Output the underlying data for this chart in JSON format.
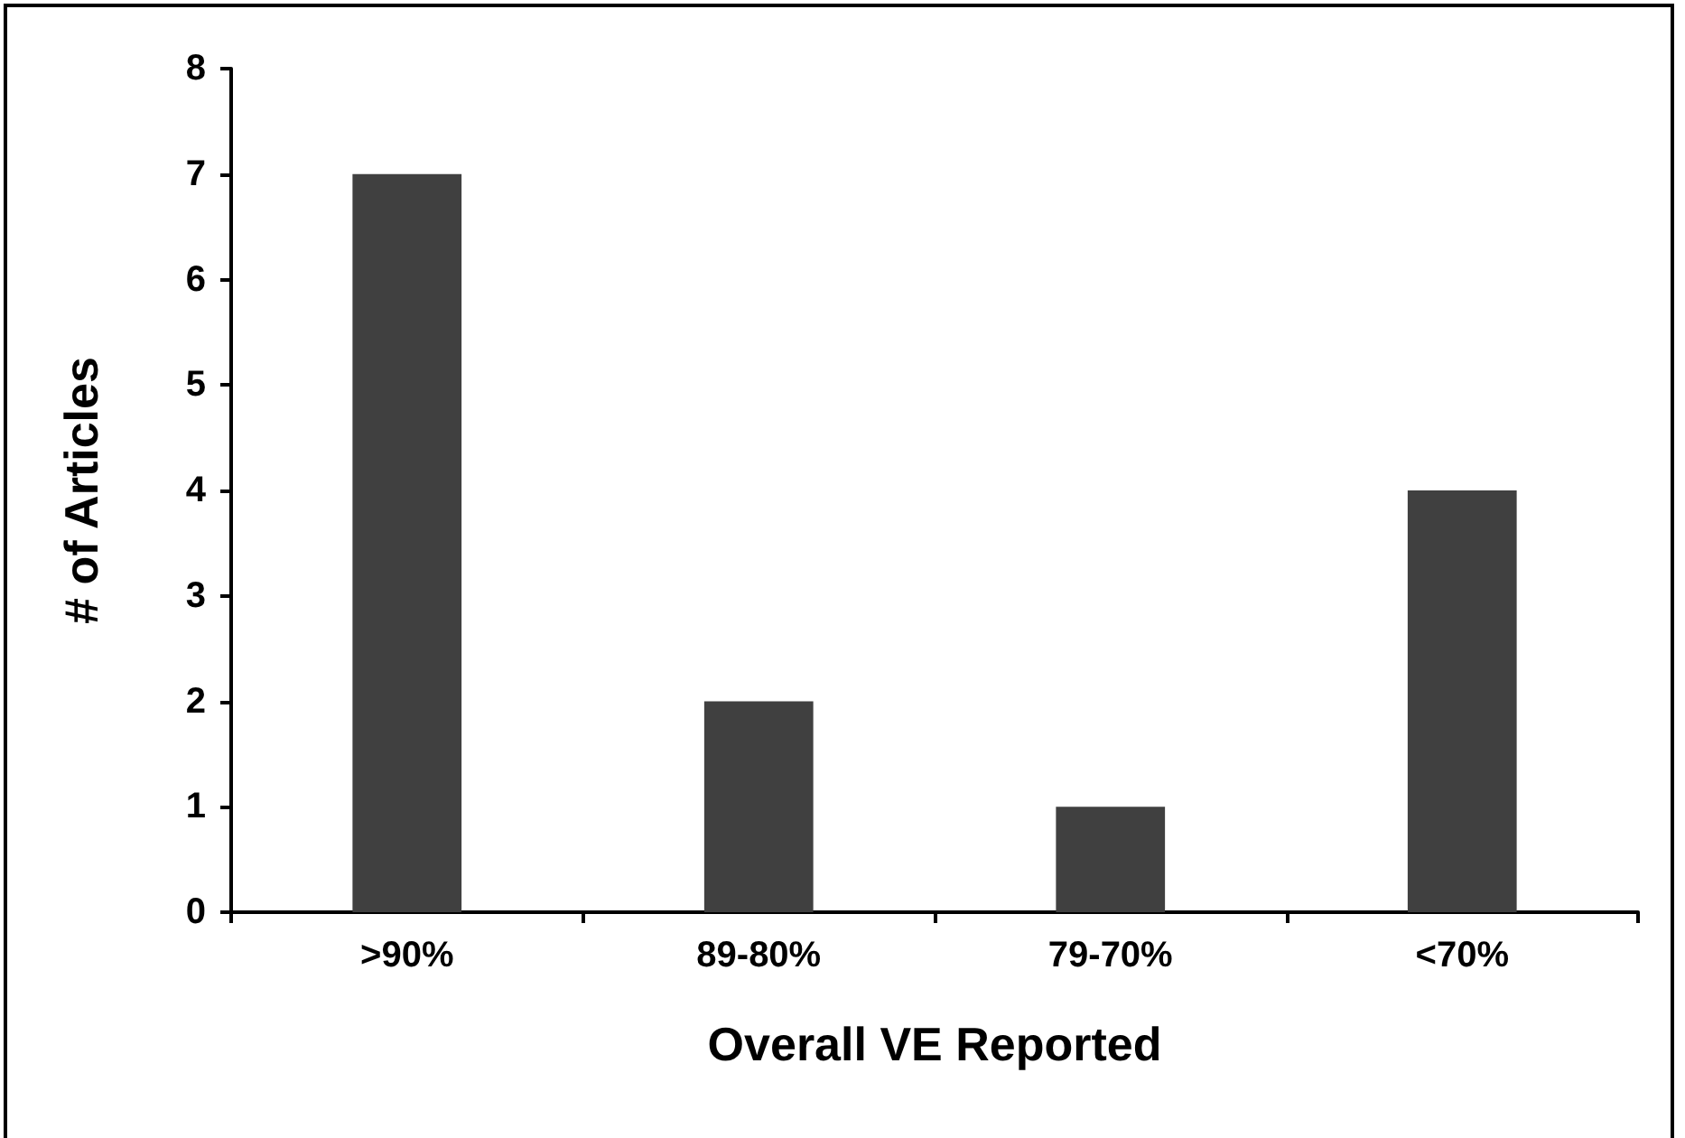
{
  "chart_data": {
    "type": "bar",
    "xlabel": "Overall VE Reported",
    "ylabel": "# of Articles",
    "categories": [
      ">90%",
      "89-80%",
      "79-70%",
      "<70%"
    ],
    "values": [
      7,
      2,
      1,
      4
    ],
    "color": "#404040",
    "ylim": [
      0,
      8
    ],
    "yticks": [
      0,
      1,
      2,
      3,
      4,
      5,
      6,
      7,
      8
    ],
    "grid": false
  }
}
